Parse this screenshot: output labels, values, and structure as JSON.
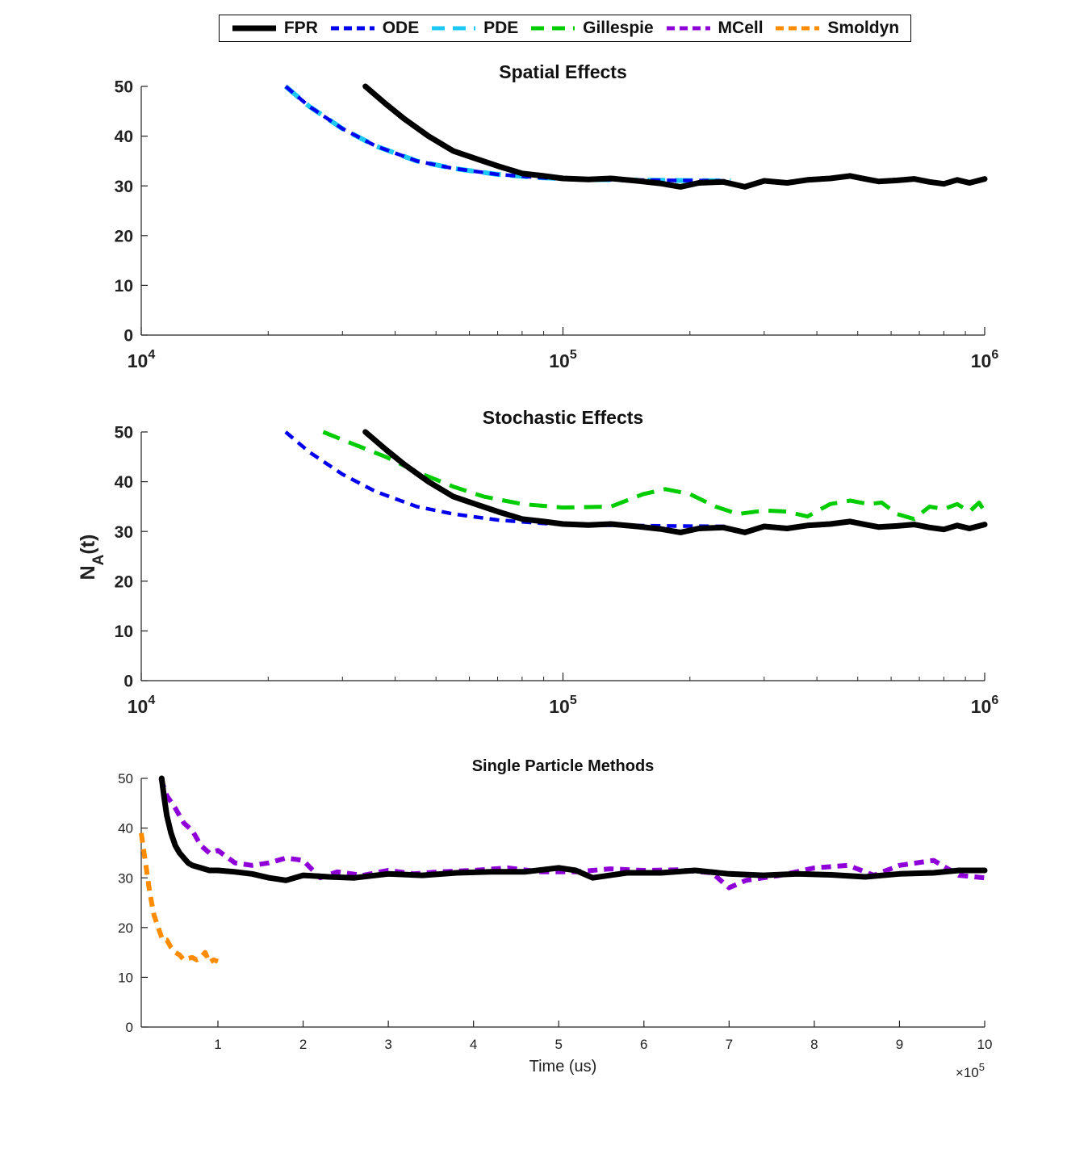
{
  "legend": {
    "entries": [
      {
        "label": "FPR",
        "color": "#000000",
        "dash": "solid"
      },
      {
        "label": "ODE",
        "color": "#0000ee",
        "dash": "dash"
      },
      {
        "label": "PDE",
        "color": "#1ec8f5",
        "dash": "longdash"
      },
      {
        "label": "Gillespie",
        "color": "#00cc00",
        "dash": "longdash"
      },
      {
        "label": "MCell",
        "color": "#8f00d9",
        "dash": "dash"
      },
      {
        "label": "Smoldyn",
        "color": "#ff8c00",
        "dash": "dash"
      }
    ]
  },
  "ylabel": "N_A(t)",
  "chart_data": [
    {
      "type": "line",
      "title": "Spatial Effects",
      "xscale": "log",
      "xlim": [
        10000,
        1000000
      ],
      "ylim": [
        0,
        50
      ],
      "yticks": [
        0,
        10,
        20,
        30,
        40,
        50
      ],
      "xtick_labels": [
        "10^4",
        "10^5",
        "10^6"
      ],
      "xlabel": "",
      "series": [
        {
          "name": "PDE",
          "x": [
            22000,
            25000,
            30000,
            36000,
            45000,
            55000,
            70000,
            90000,
            110000,
            140000,
            180000,
            250000
          ],
          "y": [
            50,
            46,
            41.5,
            38,
            35,
            33.5,
            32.3,
            31.6,
            31.3,
            31.2,
            31.1,
            31
          ]
        },
        {
          "name": "ODE",
          "x": [
            22000,
            25000,
            30000,
            36000,
            45000,
            55000,
            70000,
            90000,
            110000,
            140000,
            180000,
            250000
          ],
          "y": [
            50,
            46,
            41.5,
            38,
            35,
            33.5,
            32.3,
            31.6,
            31.3,
            31.2,
            31.1,
            31
          ]
        },
        {
          "name": "FPR",
          "x": [
            34000,
            38000,
            42000,
            48000,
            55000,
            62000,
            70000,
            80000,
            90000,
            100000,
            115000,
            130000,
            150000,
            170000,
            190000,
            210000,
            240000,
            270000,
            300000,
            340000,
            380000,
            430000,
            480000,
            520000,
            560000,
            620000,
            680000,
            740000,
            800000,
            860000,
            920000,
            1000000
          ],
          "y": [
            50,
            46.5,
            43.5,
            40,
            37,
            35.5,
            34,
            32.5,
            32,
            31.5,
            31.3,
            31.5,
            31,
            30.5,
            29.8,
            30.6,
            30.8,
            29.8,
            31,
            30.6,
            31.2,
            31.5,
            32,
            31.4,
            30.9,
            31.1,
            31.4,
            30.8,
            30.4,
            31.2,
            30.6,
            31.4
          ]
        }
      ]
    },
    {
      "type": "line",
      "title": "Stochastic Effects",
      "xscale": "log",
      "xlim": [
        10000,
        1000000
      ],
      "ylim": [
        0,
        50
      ],
      "yticks": [
        0,
        10,
        20,
        30,
        40,
        50
      ],
      "xtick_labels": [
        "10^4",
        "10^5",
        "10^6"
      ],
      "xlabel": "",
      "series": [
        {
          "name": "ODE",
          "x": [
            22000,
            25000,
            30000,
            36000,
            45000,
            55000,
            70000,
            90000,
            110000,
            140000,
            180000,
            250000
          ],
          "y": [
            50,
            46,
            41.5,
            38,
            35,
            33.5,
            32.3,
            31.6,
            31.3,
            31.2,
            31.1,
            31
          ]
        },
        {
          "name": "Gillespie",
          "x": [
            27000,
            32000,
            38000,
            45000,
            55000,
            65000,
            80000,
            100000,
            130000,
            155000,
            175000,
            200000,
            230000,
            260000,
            300000,
            340000,
            380000,
            430000,
            480000,
            530000,
            570000,
            620000,
            680000,
            740000,
            800000,
            860000,
            920000,
            970000,
            1000000
          ],
          "y": [
            50,
            47.5,
            45,
            42,
            39,
            37,
            35.5,
            34.8,
            35,
            37.5,
            38.5,
            37.5,
            35,
            33.5,
            34.2,
            34,
            33,
            35.5,
            36.2,
            35.5,
            35.8,
            33.5,
            32.5,
            35,
            34.5,
            35.5,
            34,
            35.8,
            34
          ]
        },
        {
          "name": "FPR",
          "x": [
            34000,
            38000,
            42000,
            48000,
            55000,
            62000,
            70000,
            80000,
            90000,
            100000,
            115000,
            130000,
            150000,
            170000,
            190000,
            210000,
            240000,
            270000,
            300000,
            340000,
            380000,
            430000,
            480000,
            520000,
            560000,
            620000,
            680000,
            740000,
            800000,
            860000,
            920000,
            1000000
          ],
          "y": [
            50,
            46.5,
            43.5,
            40,
            37,
            35.5,
            34,
            32.5,
            32,
            31.5,
            31.3,
            31.5,
            31,
            30.5,
            29.8,
            30.6,
            30.8,
            29.8,
            31,
            30.6,
            31.2,
            31.5,
            32,
            31.4,
            30.9,
            31.1,
            31.4,
            30.8,
            30.4,
            31.2,
            30.6,
            31.4
          ]
        }
      ]
    },
    {
      "type": "line",
      "title": "Single Particle Methods",
      "xscale": "linear",
      "xlim": [
        10000,
        1000000
      ],
      "ylim": [
        0,
        50
      ],
      "yticks": [
        0,
        10,
        20,
        30,
        40,
        50
      ],
      "xticks": [
        100000,
        200000,
        300000,
        400000,
        500000,
        600000,
        700000,
        800000,
        900000,
        1000000
      ],
      "xtick_labels": [
        "1",
        "2",
        "3",
        "4",
        "5",
        "6",
        "7",
        "8",
        "9",
        "10"
      ],
      "xlabel": "Time (us)",
      "x_multiplier": "×10^5",
      "series": [
        {
          "name": "Smoldyn",
          "x": [
            10000,
            15000,
            20000,
            25000,
            30000,
            35000,
            40000,
            45000,
            50000,
            55000,
            60000,
            65000,
            70000,
            75000,
            80000,
            85000,
            90000,
            95000,
            100000
          ],
          "y": [
            39,
            33,
            27,
            22.5,
            20,
            17.5,
            17.5,
            16,
            15,
            14.5,
            13.5,
            13.8,
            14,
            13.5,
            14,
            15,
            13,
            13.5,
            13.2
          ]
        },
        {
          "name": "MCell",
          "x": [
            33000,
            40000,
            50000,
            60000,
            70000,
            80000,
            90000,
            100000,
            120000,
            140000,
            160000,
            180000,
            200000,
            220000,
            240000,
            270000,
            300000,
            330000,
            360000,
            400000,
            440000,
            480000,
            520000,
            560000,
            600000,
            640000,
            680000,
            700000,
            720000,
            760000,
            800000,
            840000,
            870000,
            900000,
            940000,
            970000,
            1000000
          ],
          "y": [
            50,
            46.5,
            44,
            41,
            39.5,
            36.5,
            35,
            35.5,
            33,
            32.5,
            33,
            34,
            33.5,
            30,
            31.2,
            30.5,
            31.5,
            30.8,
            31.2,
            31.5,
            32,
            31.2,
            31.2,
            31.8,
            31.5,
            31.6,
            31,
            28,
            29.5,
            30.5,
            32,
            32.5,
            30.5,
            32.5,
            33.5,
            30.5,
            30
          ]
        },
        {
          "name": "FPR",
          "x": [
            34000,
            37000,
            40000,
            45000,
            50000,
            55000,
            60000,
            65000,
            70000,
            80000,
            90000,
            100000,
            120000,
            140000,
            160000,
            180000,
            200000,
            230000,
            260000,
            300000,
            340000,
            380000,
            420000,
            460000,
            500000,
            520000,
            540000,
            580000,
            620000,
            660000,
            700000,
            740000,
            780000,
            820000,
            860000,
            900000,
            940000,
            970000,
            1000000
          ],
          "y": [
            50,
            46,
            42.5,
            39,
            36.5,
            35,
            34,
            33,
            32.5,
            32,
            31.5,
            31.5,
            31.2,
            30.8,
            30,
            29.5,
            30.5,
            30.2,
            30,
            30.8,
            30.5,
            31,
            31.2,
            31.2,
            32,
            31.5,
            30,
            31,
            31,
            31.5,
            30.8,
            30.5,
            30.8,
            30.6,
            30.2,
            30.8,
            31,
            31.5,
            31.5
          ]
        }
      ]
    }
  ]
}
